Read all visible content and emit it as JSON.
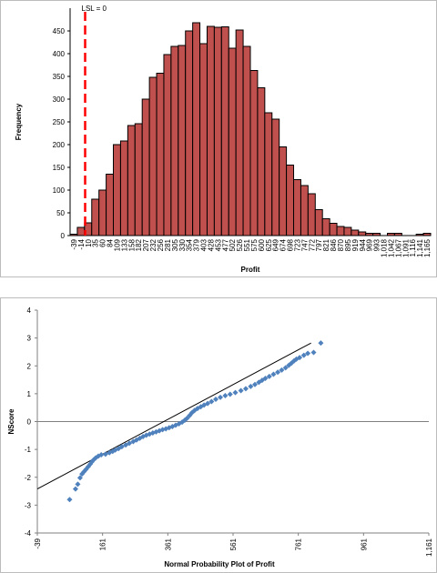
{
  "chart_data": [
    {
      "type": "bar",
      "xlabel": "Profit",
      "ylabel": "Frequency",
      "ylim": [
        0,
        500
      ],
      "yticks": [
        0,
        50,
        100,
        150,
        200,
        250,
        300,
        350,
        400,
        450
      ],
      "grid": false,
      "bar_color": "#c0504d",
      "annotation": {
        "label": "LSL = 0",
        "x": 0,
        "color": "#ff0000"
      },
      "categories": [
        "-39",
        "-14",
        "10",
        "35",
        "60",
        "84",
        "109",
        "133",
        "158",
        "182",
        "207",
        "232",
        "256",
        "281",
        "305",
        "330",
        "354",
        "379",
        "403",
        "428",
        "453",
        "477",
        "502",
        "526",
        "551",
        "575",
        "600",
        "625",
        "649",
        "674",
        "698",
        "723",
        "747",
        "772",
        "797",
        "821",
        "846",
        "870",
        "895",
        "919",
        "944",
        "969",
        "993",
        "1,018",
        "1,042",
        "1,067",
        "1,091",
        "1,116",
        "1,141",
        "1,165"
      ],
      "values": [
        3,
        18,
        28,
        80,
        100,
        135,
        200,
        208,
        242,
        246,
        300,
        348,
        357,
        398,
        416,
        418,
        450,
        468,
        422,
        460,
        458,
        459,
        412,
        452,
        416,
        363,
        325,
        270,
        256,
        195,
        155,
        123,
        110,
        92,
        57,
        37,
        27,
        20,
        18,
        12,
        8,
        5,
        5,
        0,
        5,
        5,
        0,
        0,
        3,
        5
      ]
    },
    {
      "type": "scatter",
      "xlabel": "Normal Probability Plot of Profit",
      "ylabel": "NScore",
      "xlim": [
        -39,
        1161
      ],
      "ylim": [
        -4,
        4
      ],
      "xticks": [
        "-39",
        "161",
        "361",
        "561",
        "761",
        "961",
        "1,161"
      ],
      "yticks": [
        "-4",
        "-3",
        "-2",
        "-1",
        "0",
        "1",
        "2",
        "3",
        "4"
      ],
      "point_color": "#4f81bd",
      "fit_line": {
        "x": [
          -39,
          800
        ],
        "y": [
          -2.42,
          2.82
        ],
        "color": "#000000"
      },
      "points": [
        [
          60,
          -2.8
        ],
        [
          78,
          -2.42
        ],
        [
          85,
          -2.25
        ],
        [
          92,
          -2.02
        ],
        [
          98,
          -1.88
        ],
        [
          104,
          -1.8
        ],
        [
          110,
          -1.72
        ],
        [
          117,
          -1.62
        ],
        [
          123,
          -1.53
        ],
        [
          128,
          -1.45
        ],
        [
          133,
          -1.38
        ],
        [
          140,
          -1.3
        ],
        [
          148,
          -1.24
        ],
        [
          157,
          -1.19
        ],
        [
          170,
          -1.17
        ],
        [
          182,
          -1.12
        ],
        [
          192,
          -1.07
        ],
        [
          200,
          -1.02
        ],
        [
          210,
          -0.97
        ],
        [
          220,
          -0.9
        ],
        [
          232,
          -0.84
        ],
        [
          243,
          -0.78
        ],
        [
          255,
          -0.72
        ],
        [
          265,
          -0.66
        ],
        [
          275,
          -0.6
        ],
        [
          285,
          -0.54
        ],
        [
          295,
          -0.49
        ],
        [
          305,
          -0.45
        ],
        [
          315,
          -0.41
        ],
        [
          325,
          -0.37
        ],
        [
          335,
          -0.33
        ],
        [
          345,
          -0.29
        ],
        [
          355,
          -0.26
        ],
        [
          365,
          -0.22
        ],
        [
          375,
          -0.18
        ],
        [
          385,
          -0.13
        ],
        [
          395,
          -0.08
        ],
        [
          405,
          -0.02
        ],
        [
          413,
          0.05
        ],
        [
          420,
          0.12
        ],
        [
          428,
          0.22
        ],
        [
          435,
          0.32
        ],
        [
          443,
          0.4
        ],
        [
          452,
          0.47
        ],
        [
          462,
          0.53
        ],
        [
          472,
          0.59
        ],
        [
          483,
          0.65
        ],
        [
          495,
          0.72
        ],
        [
          508,
          0.8
        ],
        [
          522,
          0.87
        ],
        [
          537,
          0.93
        ],
        [
          552,
          0.98
        ],
        [
          568,
          1.04
        ],
        [
          585,
          1.11
        ],
        [
          600,
          1.18
        ],
        [
          615,
          1.26
        ],
        [
          628,
          1.33
        ],
        [
          640,
          1.41
        ],
        [
          650,
          1.48
        ],
        [
          660,
          1.55
        ],
        [
          672,
          1.62
        ],
        [
          685,
          1.7
        ],
        [
          698,
          1.77
        ],
        [
          710,
          1.85
        ],
        [
          722,
          1.93
        ],
        [
          732,
          2.02
        ],
        [
          740,
          2.1
        ],
        [
          748,
          2.18
        ],
        [
          755,
          2.24
        ],
        [
          765,
          2.3
        ],
        [
          778,
          2.38
        ],
        [
          790,
          2.45
        ],
        [
          808,
          2.48
        ],
        [
          830,
          2.82
        ]
      ]
    }
  ]
}
